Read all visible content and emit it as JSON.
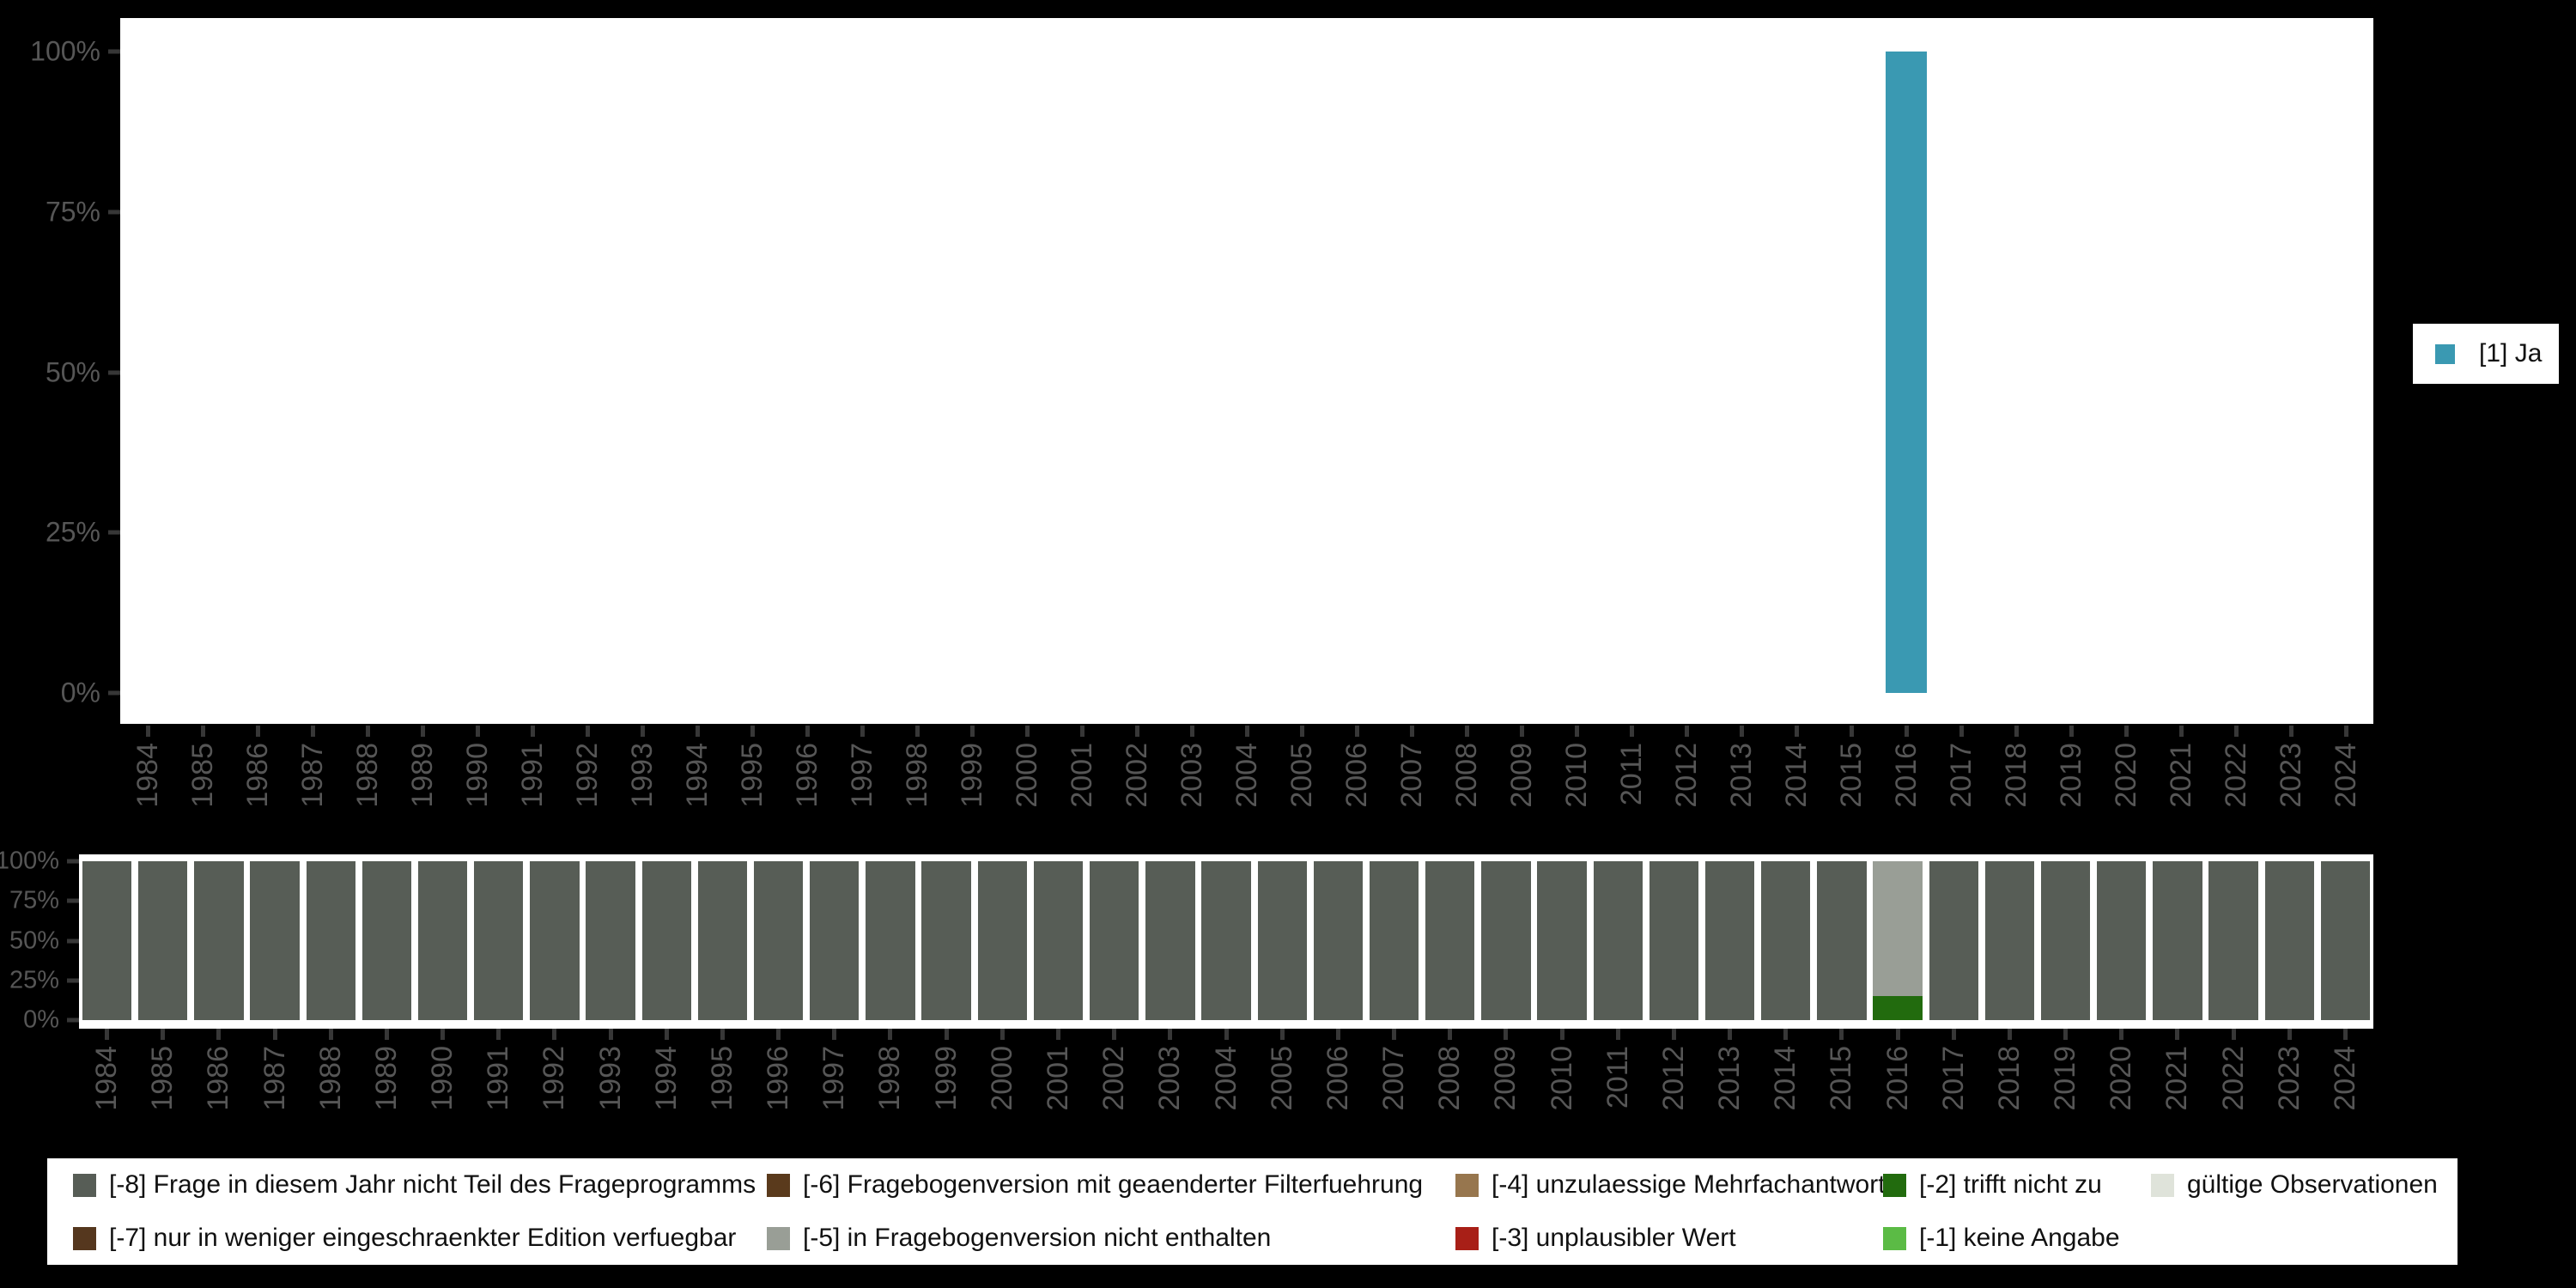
{
  "background_color": "#000000",
  "palette": {
    "1": "#3a99b2",
    "-8": "#575d56",
    "-7": "#55371e",
    "-6": "#5a3a1c",
    "-5": "#999e96",
    "-4": "#97764e",
    "-3": "#a81f17",
    "-2": "#226b0e",
    "-1": "#5bbb45",
    "valid": "#dfe3da"
  },
  "axis": {
    "tick_mark_color": "#373737",
    "tick_label_color": "#565656"
  },
  "chart_data": [
    {
      "id": "frequencies",
      "type": "bar",
      "title": "",
      "xlabel": "",
      "ylabel": "",
      "ylim": [
        0,
        100
      ],
      "y_tick_labels": [
        "100%",
        "75%",
        "50%",
        "25%",
        "0%"
      ],
      "grid": false,
      "legend_position": "right",
      "categories": [
        "1984",
        "1985",
        "1986",
        "1987",
        "1988",
        "1989",
        "1990",
        "1991",
        "1992",
        "1993",
        "1994",
        "1995",
        "1996",
        "1997",
        "1998",
        "1999",
        "2000",
        "2001",
        "2002",
        "2003",
        "2004",
        "2005",
        "2006",
        "2007",
        "2008",
        "2009",
        "2010",
        "2011",
        "2012",
        "2013",
        "2014",
        "2015",
        "2016",
        "2017",
        "2018",
        "2019",
        "2020",
        "2021",
        "2022",
        "2023",
        "2024"
      ],
      "series": [
        {
          "name": "[1] Ja",
          "color_key": "1",
          "values": [
            0,
            0,
            0,
            0,
            0,
            0,
            0,
            0,
            0,
            0,
            0,
            0,
            0,
            0,
            0,
            0,
            0,
            0,
            0,
            0,
            0,
            0,
            0,
            0,
            0,
            0,
            0,
            0,
            0,
            0,
            0,
            0,
            100,
            0,
            0,
            0,
            0,
            0,
            0,
            0,
            0
          ]
        }
      ]
    },
    {
      "id": "missings",
      "type": "stacked-bar-percent",
      "title": "",
      "xlabel": "",
      "ylabel": "",
      "ylim": [
        0,
        100
      ],
      "y_tick_labels": [
        "100%",
        "75%",
        "50%",
        "25%",
        "0%"
      ],
      "grid": false,
      "legend_position": "bottom",
      "categories": [
        "1984",
        "1985",
        "1986",
        "1987",
        "1988",
        "1989",
        "1990",
        "1991",
        "1992",
        "1993",
        "1994",
        "1995",
        "1996",
        "1997",
        "1998",
        "1999",
        "2000",
        "2001",
        "2002",
        "2003",
        "2004",
        "2005",
        "2006",
        "2007",
        "2008",
        "2009",
        "2010",
        "2011",
        "2012",
        "2013",
        "2014",
        "2015",
        "2016",
        "2017",
        "2018",
        "2019",
        "2020",
        "2021",
        "2022",
        "2023",
        "2024"
      ],
      "series": [
        {
          "name": "[-8] Frage in diesem Jahr nicht Teil des Frageprogramms",
          "color_key": "-8",
          "values": [
            100,
            100,
            100,
            100,
            100,
            100,
            100,
            100,
            100,
            100,
            100,
            100,
            100,
            100,
            100,
            100,
            100,
            100,
            100,
            100,
            100,
            100,
            100,
            100,
            100,
            100,
            100,
            100,
            100,
            100,
            100,
            100,
            0,
            100,
            100,
            100,
            100,
            100,
            100,
            100,
            100
          ]
        },
        {
          "name": "[-5] in Fragebogenversion nicht enthalten",
          "color_key": "-5",
          "values": [
            0,
            0,
            0,
            0,
            0,
            0,
            0,
            0,
            0,
            0,
            0,
            0,
            0,
            0,
            0,
            0,
            0,
            0,
            0,
            0,
            0,
            0,
            0,
            0,
            0,
            0,
            0,
            0,
            0,
            0,
            0,
            0,
            85,
            0,
            0,
            0,
            0,
            0,
            0,
            0,
            0
          ]
        },
        {
          "name": "[-2] trifft nicht zu",
          "color_key": "-2",
          "values": [
            0,
            0,
            0,
            0,
            0,
            0,
            0,
            0,
            0,
            0,
            0,
            0,
            0,
            0,
            0,
            0,
            0,
            0,
            0,
            0,
            0,
            0,
            0,
            0,
            0,
            0,
            0,
            0,
            0,
            0,
            0,
            0,
            15,
            0,
            0,
            0,
            0,
            0,
            0,
            0,
            0
          ]
        }
      ]
    }
  ],
  "legend_right": {
    "items": [
      {
        "label": "[1] Ja",
        "color_key": "1"
      }
    ]
  },
  "legend_bottom": {
    "items_row_major": [
      {
        "label": "[-8] Frage in diesem Jahr nicht Teil des Frageprogramms",
        "color_key": "-8"
      },
      {
        "label": "[-6] Fragebogenversion mit geaenderter Filterfuehrung",
        "color_key": "-6"
      },
      {
        "label": "[-4] unzulaessige Mehrfachantwort",
        "color_key": "-4"
      },
      {
        "label": "[-2] trifft nicht zu",
        "color_key": "-2"
      },
      {
        "label": "gültige Observationen",
        "color_key": "valid"
      },
      {
        "label": "[-7] nur in weniger eingeschraenkter Edition verfuegbar",
        "color_key": "-7"
      },
      {
        "label": "[-5] in Fragebogenversion nicht enthalten",
        "color_key": "-5"
      },
      {
        "label": "[-3] unplausibler Wert",
        "color_key": "-3"
      },
      {
        "label": "[-1] keine Angabe",
        "color_key": "-1"
      }
    ]
  }
}
